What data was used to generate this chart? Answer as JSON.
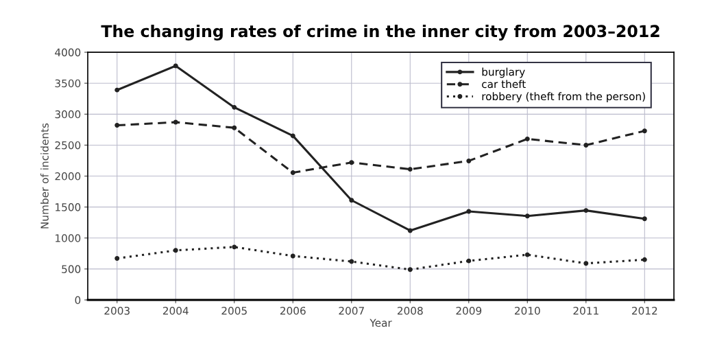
{
  "chart_data": {
    "type": "line",
    "title": "The changing rates of crime in the inner city from 2003–2012",
    "xlabel": "Year",
    "ylabel": "Number of incidents",
    "categories": [
      "2003",
      "2004",
      "2005",
      "2006",
      "2007",
      "2008",
      "2009",
      "2010",
      "2011",
      "2012"
    ],
    "series": [
      {
        "name": "burglary",
        "color": "#222222",
        "line_style": "solid",
        "values": [
          3390,
          3780,
          3110,
          2650,
          1610,
          1120,
          1430,
          1355,
          1445,
          1310
        ]
      },
      {
        "name": "car theft",
        "color": "#222222",
        "line_style": "dashed",
        "values": [
          2820,
          2870,
          2780,
          2055,
          2220,
          2110,
          2245,
          2600,
          2500,
          2730
        ]
      },
      {
        "name": "robbery (theft from the person)",
        "color": "#222222",
        "line_style": "dotted",
        "values": [
          670,
          800,
          855,
          710,
          620,
          490,
          630,
          730,
          590,
          650
        ]
      }
    ],
    "ylim": [
      0,
      4000
    ],
    "yticks": [
      0,
      500,
      1000,
      1500,
      2000,
      2500,
      3000,
      3500,
      4000
    ],
    "grid": true,
    "legend": "top right",
    "marker": "circle"
  }
}
